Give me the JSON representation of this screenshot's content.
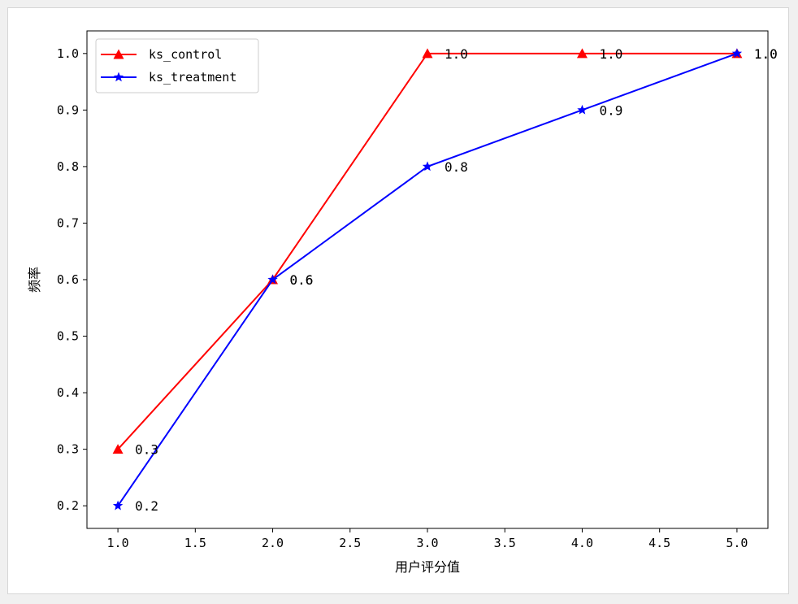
{
  "chart_data": {
    "type": "line",
    "title": "",
    "xlabel": "用户评分值",
    "ylabel": "频率",
    "xlim": [
      0.8,
      5.2
    ],
    "ylim": [
      0.16,
      1.04
    ],
    "xticks": [
      "1.0",
      "1.5",
      "2.0",
      "2.5",
      "3.0",
      "3.5",
      "4.0",
      "4.5",
      "5.0"
    ],
    "yticks": [
      "0.2",
      "0.3",
      "0.4",
      "0.5",
      "0.6",
      "0.7",
      "0.8",
      "0.9",
      "1.0"
    ],
    "grid": false,
    "legend_position": "top-left",
    "x": [
      1.0,
      2.0,
      3.0,
      4.0,
      5.0
    ],
    "series": [
      {
        "name": "ks_control",
        "color": "#ff0000",
        "marker": "triangle",
        "values": [
          0.3,
          0.6,
          1.0,
          1.0,
          1.0
        ],
        "labels": [
          "0.3",
          "0.6",
          "1.0",
          "1.0",
          "1.0"
        ]
      },
      {
        "name": "ks_treatment",
        "color": "#0000ff",
        "marker": "star",
        "values": [
          0.2,
          0.6,
          0.8,
          0.9,
          1.0
        ],
        "labels": [
          "0.2",
          "0.6",
          "0.8",
          "0.9",
          "1.0"
        ]
      }
    ]
  }
}
